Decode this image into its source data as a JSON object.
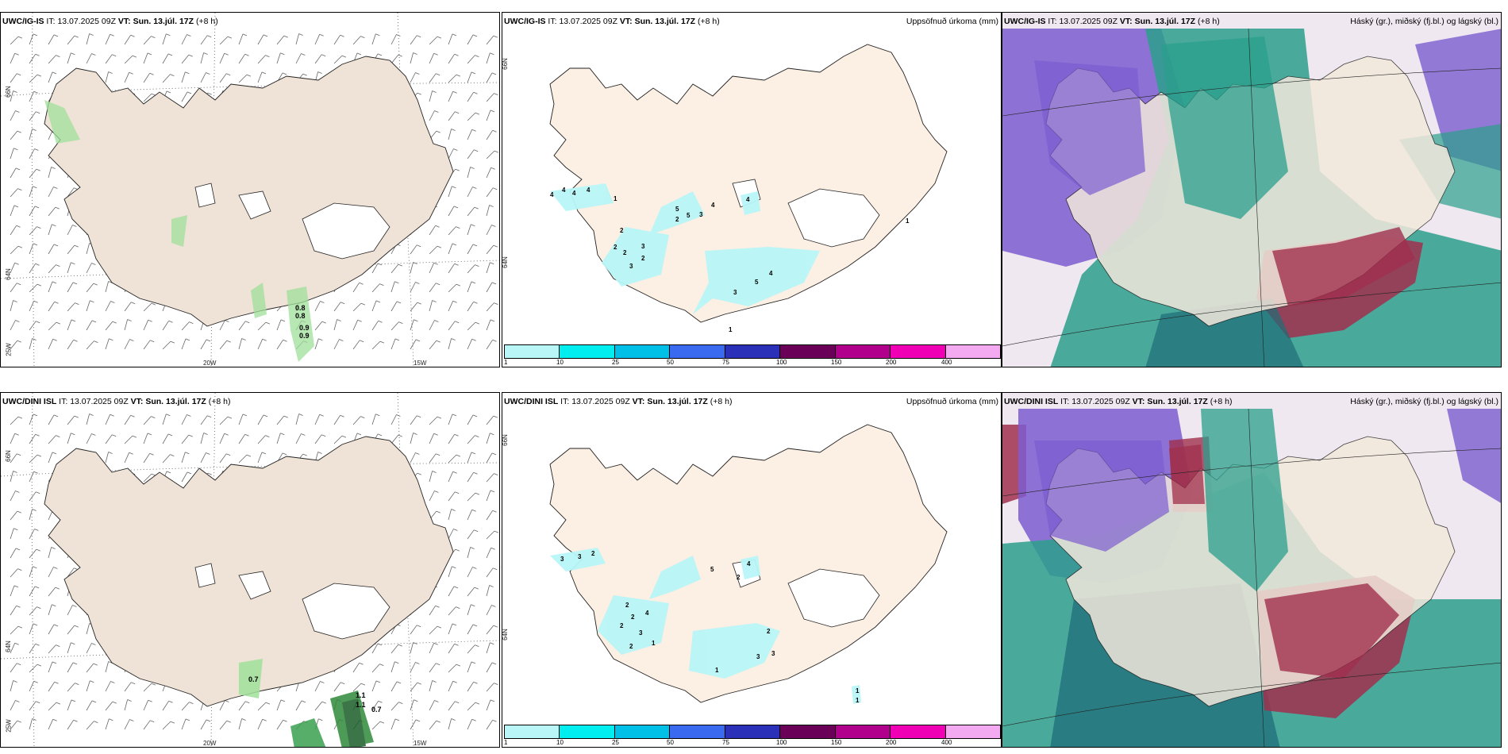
{
  "rows": [
    {
      "model": "UWC/IG-IS",
      "it_label": "IT:",
      "it_value": "13.07.2025 09Z",
      "vt_label": "VT:",
      "vt_value": "Sun. 13.júl. 17Z",
      "lead": "(+8 h)"
    },
    {
      "model": "UWC/DINI ISL",
      "it_label": "IT:",
      "it_value": "13.07.2025 09Z",
      "vt_label": "VT:",
      "vt_value": "Sun. 13.júl. 17Z",
      "lead": "(+8 h)"
    }
  ],
  "precip_title": "Uppsöfnuð úrkoma (mm)",
  "cloud_title": "Háský (gr.), miðský (fj.bl.) og lágský (bl.)",
  "coord_labels": {
    "lat66": "66N",
    "lat64": "64N",
    "lon25": "25W",
    "lon20": "20W",
    "lon15": "15W",
    "mid66": "66N",
    "mid64": "64N"
  },
  "colorbar": {
    "ticks": [
      "1",
      "10",
      "25",
      "50",
      "75",
      "100",
      "150",
      "200",
      "400"
    ],
    "colors": [
      "#b8f6f8",
      "#00eef0",
      "#00c0e8",
      "#3a6af0",
      "#2a30b8",
      "#6a0058",
      "#b0008c",
      "#f000b4",
      "#f4aaf0"
    ]
  },
  "wind_values_top": [
    "0.8",
    "0.8",
    "0.9",
    "0.9"
  ],
  "wind_values_bottom": [
    "0.7",
    "1.1",
    "1.1",
    "0.7"
  ],
  "precip_values_top": [
    "4",
    "4",
    "4",
    "4",
    "1",
    "2",
    "2",
    "2",
    "3",
    "3",
    "2",
    "5",
    "5",
    "4",
    "3",
    "2",
    "4",
    "5",
    "4",
    "3",
    "1",
    "1"
  ],
  "precip_values_bottom": [
    "3",
    "3",
    "2",
    "2",
    "2",
    "4",
    "2",
    "5",
    "4",
    "2",
    "3",
    "2",
    "1",
    "2",
    "3",
    "3",
    "1",
    "1",
    "1"
  ],
  "colors": {
    "land": "#efe2d6",
    "land_precip": "#fcefe3",
    "green_precip": "#9fe09a",
    "cloud_high": "#7c5cd0",
    "cloud_mid": "#2b9f8c",
    "cloud_low": "#a0304e"
  }
}
